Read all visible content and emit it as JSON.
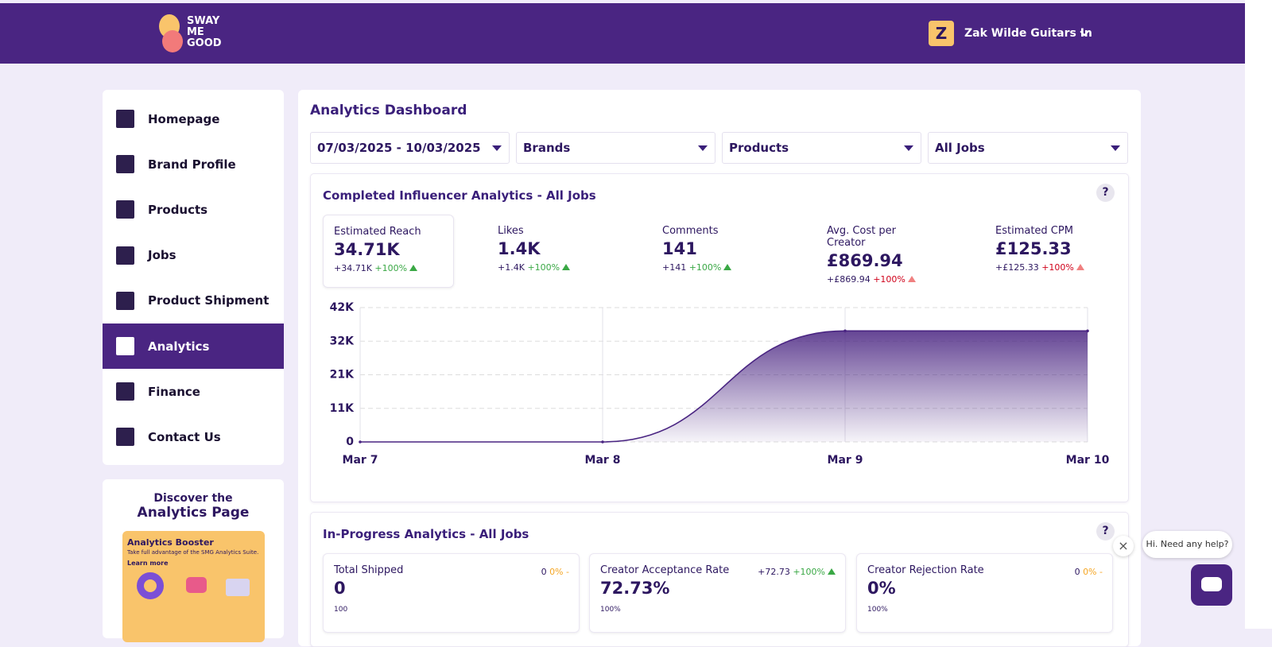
{
  "header": {
    "logo": [
      "SWAY",
      "ME",
      "GOOD"
    ],
    "user_initial": "Z",
    "user_name": "Zak Wilde Guitars In"
  },
  "nav": {
    "items": [
      "Homepage",
      "Brand Profile",
      "Products",
      "Jobs",
      "Product Shipment",
      "Analytics",
      "Finance",
      "Contact Us"
    ],
    "active": 5
  },
  "promo": {
    "heading1": "Discover the",
    "heading2": "Analytics Page",
    "card_title": "Analytics Booster",
    "card_text": "Take full advantage of the SMG Analytics Suite.",
    "card_link": "Learn more"
  },
  "dashboard": {
    "title": "Analytics Dashboard",
    "filters": [
      "07/03/2025 - 10/03/2025",
      "Brands",
      "Products",
      "All Jobs"
    ]
  },
  "completed": {
    "title": "Completed Influencer Analytics - All Jobs",
    "help": "?",
    "metrics": [
      {
        "label": "Estimated Reach",
        "value": "34.71K",
        "delta": "+34.71K",
        "change": "+100%",
        "color": "#3aa845"
      },
      {
        "label": "Likes",
        "value": "1.4K",
        "delta": "+1.4K",
        "change": "+100%",
        "color": "#3aa845"
      },
      {
        "label": "Comments",
        "value": "141",
        "delta": "+141",
        "change": "+100%",
        "color": "#3aa845"
      },
      {
        "label": "Avg. Cost per Creator",
        "value": "£869.94",
        "delta": "+£869.94",
        "change": "+100%",
        "color": "#d0021b"
      },
      {
        "label": "Estimated CPM",
        "value": "£125.33",
        "delta": "+£125.33",
        "change": "+100%",
        "color": "#d0021b"
      }
    ]
  },
  "chart_data": {
    "type": "area",
    "categories": [
      "Mar 7",
      "Mar 8",
      "Mar 9",
      "Mar 10"
    ],
    "values": [
      0,
      0,
      34710,
      34710
    ],
    "color": "#4a2582",
    "ylim": [
      0,
      42000
    ],
    "yticks": [
      0,
      {
        "value": 10500,
        "label": "11K"
      },
      {
        "value": 21000,
        "label": "21K"
      },
      {
        "value": 31500,
        "label": "32K"
      },
      {
        "value": 42000,
        "label": "42K"
      }
    ],
    "grid": true
  },
  "in_progress": {
    "title": "In-Progress Analytics - All Jobs",
    "help": "?",
    "cards": [
      {
        "label": "Total Shipped",
        "value": "0",
        "delta": "0",
        "change": "0%",
        "trend": "-",
        "color": "#f5a623",
        "axis": "100"
      },
      {
        "label": "Creator Acceptance Rate",
        "value": "72.73%",
        "delta": "+72.73",
        "change": "+100%",
        "color": "#3aa845",
        "axis": "100%"
      },
      {
        "label": "Creator Rejection Rate",
        "value": "0%",
        "delta": "0",
        "change": "0%",
        "trend": "-",
        "color": "#f5a623",
        "axis": "100%"
      }
    ]
  },
  "chat": {
    "bubble": "Hi. Need any help?",
    "close": "×"
  }
}
